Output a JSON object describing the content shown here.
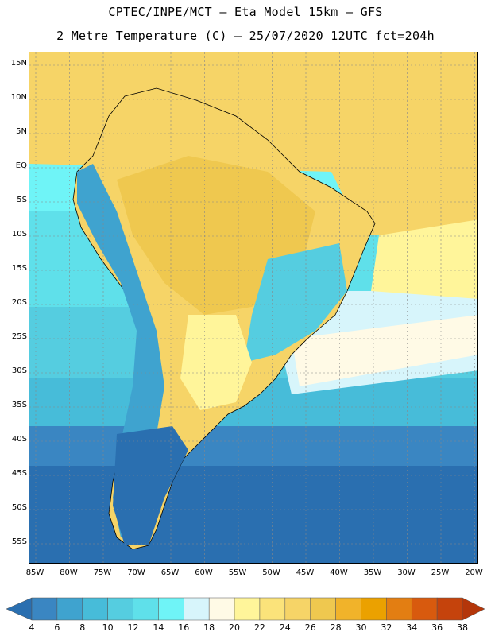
{
  "header": {
    "title_line1": "CPTEC/INPE/MCT –  Eta Model 15km – GFS",
    "title_line2": "2 Metre Temperature (C) – 25/07/2020 12UTC fct=204h"
  },
  "map": {
    "lat_labels": [
      "15N",
      "10N",
      "5N",
      "EQ",
      "5S",
      "10S",
      "15S",
      "20S",
      "25S",
      "30S",
      "35S",
      "40S",
      "45S",
      "50S",
      "55S"
    ],
    "lon_labels": [
      "85W",
      "80W",
      "75W",
      "70W",
      "65W",
      "60W",
      "55W",
      "50W",
      "45W",
      "40W",
      "35W",
      "30W",
      "25W",
      "20W"
    ],
    "grid": true
  },
  "colorbar": {
    "levels": [
      "4",
      "6",
      "8",
      "10",
      "12",
      "14",
      "16",
      "18",
      "20",
      "22",
      "24",
      "26",
      "28",
      "30",
      "32",
      "34",
      "36",
      "38"
    ],
    "colors": [
      "#2a6fb0",
      "#3a86c2",
      "#3fa3cf",
      "#47bcd9",
      "#55cde0",
      "#5fe0ea",
      "#6ff4f7",
      "#d7f5fb",
      "#fffae6",
      "#fff59a",
      "#fbe37a",
      "#f6d467",
      "#efc84f",
      "#f1b32a",
      "#eba100",
      "#e37e12",
      "#d85a0e",
      "#c5430c",
      "#b4360a"
    ]
  }
}
